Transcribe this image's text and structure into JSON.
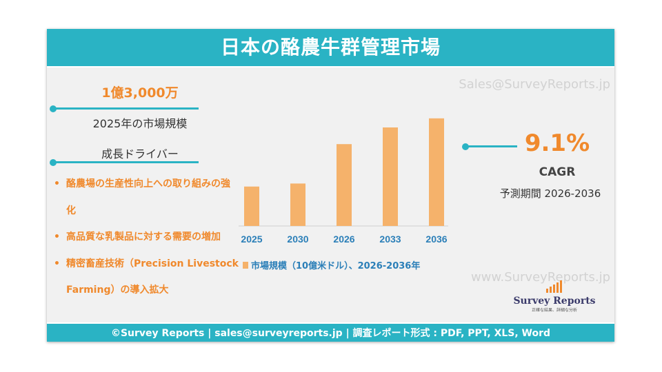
{
  "title": "日本の酪農牛群管理市場",
  "watermark_email": "Sales@SurveyReports.jp",
  "watermark_url": "www.SurveyReports.jp",
  "market_size": {
    "value": "1億3,000万",
    "label": "2025年の市場規模"
  },
  "drivers": {
    "title": "成長ドライバー",
    "items": [
      "酪農場の生産性向上への取り組みの強化",
      "高品質な乳製品に対する需要の増加",
      "精密畜産技術（Precision Livestock Farming）の導入拡大"
    ]
  },
  "cagr": {
    "value": "9.1%",
    "label": "CAGR",
    "period": "予測期間 2026-2036"
  },
  "logo": {
    "name": "Survey Reports",
    "tagline": "正確な結果、詳細な分析"
  },
  "footer": "©Survey Reports | sales@surveyreports.jp |  調査レポート形式 : PDF, PPT, XLS, Word",
  "colors": {
    "teal": "#2ab3c4",
    "orange": "#f0892c",
    "bar": "#f5b26b",
    "panel": "#f1f1f1"
  },
  "chart_data": {
    "type": "bar",
    "categories": [
      "2025",
      "2030",
      "2026",
      "2033",
      "2036"
    ],
    "values": [
      0.13,
      0.14,
      0.27,
      0.325,
      0.355
    ],
    "series": [
      {
        "name": "市場規模（10億米ドル）、2026-2036年",
        "values": [
          0.13,
          0.14,
          0.27,
          0.325,
          0.355
        ]
      }
    ],
    "legend": "市場規模（10億米ドル）、2026-2036年",
    "legend_position": "bottom",
    "grid": false,
    "ylim": [
      0,
      0.4
    ]
  }
}
